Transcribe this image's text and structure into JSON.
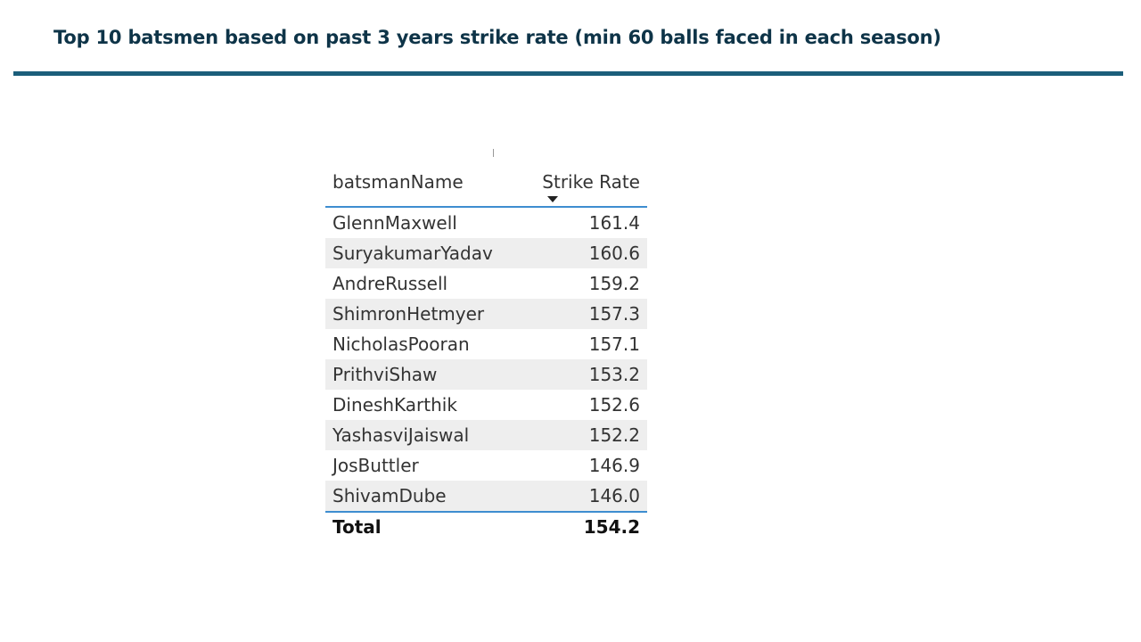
{
  "slide": {
    "title": "Top 10 batsmen based on past 3 years strike rate (min 60 balls faced in each season)"
  },
  "colors": {
    "title_text": "#0e3448",
    "title_rule": "#1b5e7a",
    "table_accent": "#3e8dd0",
    "alt_row": "#eeeeee"
  },
  "chart_data": {
    "type": "table",
    "columns": [
      "batsmanName",
      "Strike Rate"
    ],
    "sort": {
      "column": "Strike Rate",
      "direction": "descending",
      "icon": "sort-down-icon"
    },
    "rows": [
      {
        "batsmanName": "GlennMaxwell",
        "strike_rate": "161.4"
      },
      {
        "batsmanName": "SuryakumarYadav",
        "strike_rate": "160.6"
      },
      {
        "batsmanName": "AndreRussell",
        "strike_rate": "159.2"
      },
      {
        "batsmanName": "ShimronHetmyer",
        "strike_rate": "157.3"
      },
      {
        "batsmanName": "NicholasPooran",
        "strike_rate": "157.1"
      },
      {
        "batsmanName": "PrithviShaw",
        "strike_rate": "153.2"
      },
      {
        "batsmanName": "DineshKarthik",
        "strike_rate": "152.6"
      },
      {
        "batsmanName": "YashasviJaiswal",
        "strike_rate": "152.2"
      },
      {
        "batsmanName": "JosButtler",
        "strike_rate": "146.9"
      },
      {
        "batsmanName": "ShivamDube",
        "strike_rate": "146.0"
      }
    ],
    "total": {
      "label": "Total",
      "value": "154.2"
    }
  }
}
